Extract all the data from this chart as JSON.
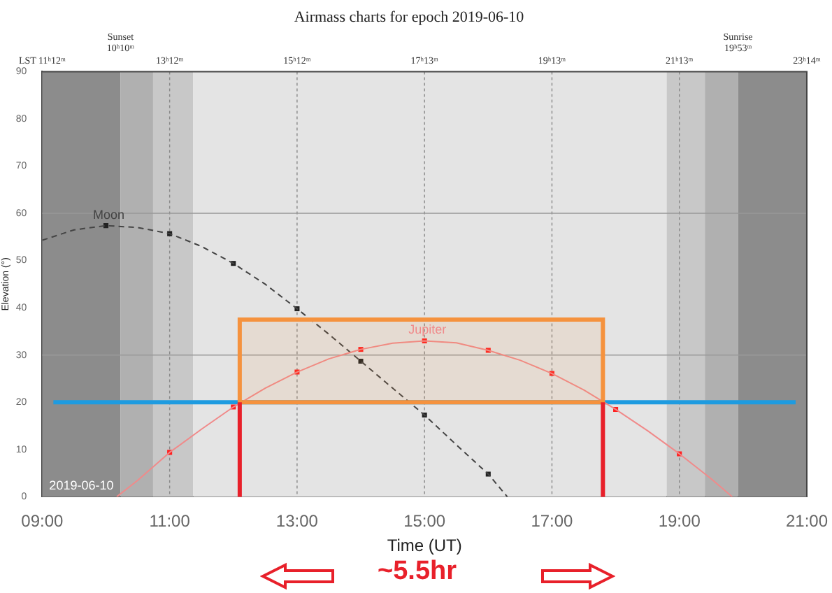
{
  "chart_data": {
    "type": "line",
    "title": "Airmass charts for epoch 2019-06-10",
    "xlabel": "Time (UT)",
    "ylabel": "Elevation (°)",
    "xlim": [
      9,
      21
    ],
    "xticks": [
      {
        "value": 9,
        "label": "09:00"
      },
      {
        "value": 11,
        "label": "11:00"
      },
      {
        "value": 13,
        "label": "13:00"
      },
      {
        "value": 15,
        "label": "15:00"
      },
      {
        "value": 17,
        "label": "17:00"
      },
      {
        "value": 19,
        "label": "19:00"
      },
      {
        "value": 21,
        "label": "21:00"
      }
    ],
    "ylim": [
      0,
      90
    ],
    "yticks": [
      0,
      10,
      20,
      30,
      40,
      50,
      60,
      70,
      80,
      90
    ],
    "grid": "x",
    "legend": false,
    "series": [
      {
        "name": "Jupiter",
        "type": "line",
        "color": "#f08a8a",
        "marker": "none",
        "x": [
          10.17,
          10.5,
          11,
          11.5,
          12,
          12.5,
          13,
          13.5,
          14,
          14.5,
          15,
          15.5,
          16,
          16.5,
          17,
          17.5,
          18,
          18.5,
          19,
          19.5,
          19.83
        ],
        "values": [
          0,
          3.5,
          9.4,
          14.3,
          19,
          23,
          26.4,
          29.2,
          31.2,
          32.5,
          33,
          32.6,
          31,
          28.9,
          26.1,
          22.6,
          18.5,
          14,
          9.1,
          3.8,
          0
        ]
      },
      {
        "type": "scatter",
        "color": "#ff2020",
        "marker": "square",
        "x": [
          11,
          12,
          13,
          14,
          15,
          16,
          17,
          18,
          19
        ],
        "values": [
          9.4,
          19,
          26.4,
          31.2,
          33,
          31,
          26.1,
          18.5,
          9.1
        ]
      },
      {
        "name": "Moon",
        "type": "line",
        "color": "#444444",
        "marker": "none",
        "line_style": "dashed",
        "x": [
          9,
          9.5,
          10,
          10.5,
          11,
          11.5,
          12,
          12.5,
          13,
          13.5,
          14,
          14.5,
          15,
          15.5,
          16,
          16.3
        ],
        "values": [
          54.3,
          56.5,
          57.4,
          57,
          55.7,
          53,
          49.4,
          45,
          39.8,
          34.4,
          28.7,
          23,
          17.3,
          11,
          4.8,
          0
        ]
      },
      {
        "type": "scatter",
        "color": "#222222",
        "marker": "square",
        "x": [
          10,
          11,
          12,
          13,
          14,
          15,
          16
        ],
        "values": [
          57.4,
          55.7,
          49.4,
          39.8,
          28.7,
          17.3,
          4.8
        ]
      }
    ],
    "bands": [
      {
        "axis": "x",
        "from": 9,
        "to": 10.23,
        "color": "#8c8c8c"
      },
      {
        "axis": "x",
        "from": 10.23,
        "to": 10.74,
        "color": "#b0b0b0"
      },
      {
        "axis": "x",
        "from": 10.74,
        "to": 11.37,
        "color": "#c8c8c8"
      },
      {
        "axis": "x",
        "from": 11.37,
        "to": 18.8,
        "color": "#e4e4e4"
      },
      {
        "axis": "x",
        "from": 18.8,
        "to": 19.4,
        "color": "#c8c8c8"
      },
      {
        "axis": "x",
        "from": 19.4,
        "to": 19.92,
        "color": "#b0b0b0"
      },
      {
        "axis": "x",
        "from": 19.92,
        "to": 21,
        "color": "#8c8c8c"
      },
      {
        "axis": "y",
        "from": 20,
        "to": 37.5,
        "color": "#f5923e"
      }
    ],
    "ref_lines": [
      {
        "axis": "y",
        "value": 30,
        "color": "#999999"
      },
      {
        "axis": "y",
        "value": 60,
        "color": "#999999"
      },
      {
        "axis": "y",
        "value": 20,
        "color": "#1e9be0"
      },
      {
        "axis": "x",
        "value": 12.1,
        "color": "#e8202a"
      },
      {
        "axis": "x",
        "value": 17.8,
        "color": "#e8202a"
      }
    ],
    "annotations": [
      "2019-06-10",
      "~5.5hr",
      {
        "text": "Sunset\n10ʰ10ᵐ",
        "x": 10.23,
        "y": 90
      },
      {
        "text": "Sunrise\n19ʰ53ᵐ",
        "x": 19.92,
        "y": 90
      },
      {
        "text": "LST 11ʰ12ᵐ",
        "x": 9,
        "y": 90
      },
      {
        "text": "13ʰ12ᵐ",
        "x": 11,
        "y": 90
      },
      {
        "text": "15ʰ12ᵐ",
        "x": 13,
        "y": 90
      },
      {
        "text": "17ʰ13ᵐ",
        "x": 15,
        "y": 90
      },
      {
        "text": "19ʰ13ᵐ",
        "x": 17,
        "y": 90
      },
      {
        "text": "21ʰ13ᵐ",
        "x": 19,
        "y": 90
      },
      {
        "text": "23ʰ14ᵐ",
        "x": 21,
        "y": 90
      }
    ]
  }
}
